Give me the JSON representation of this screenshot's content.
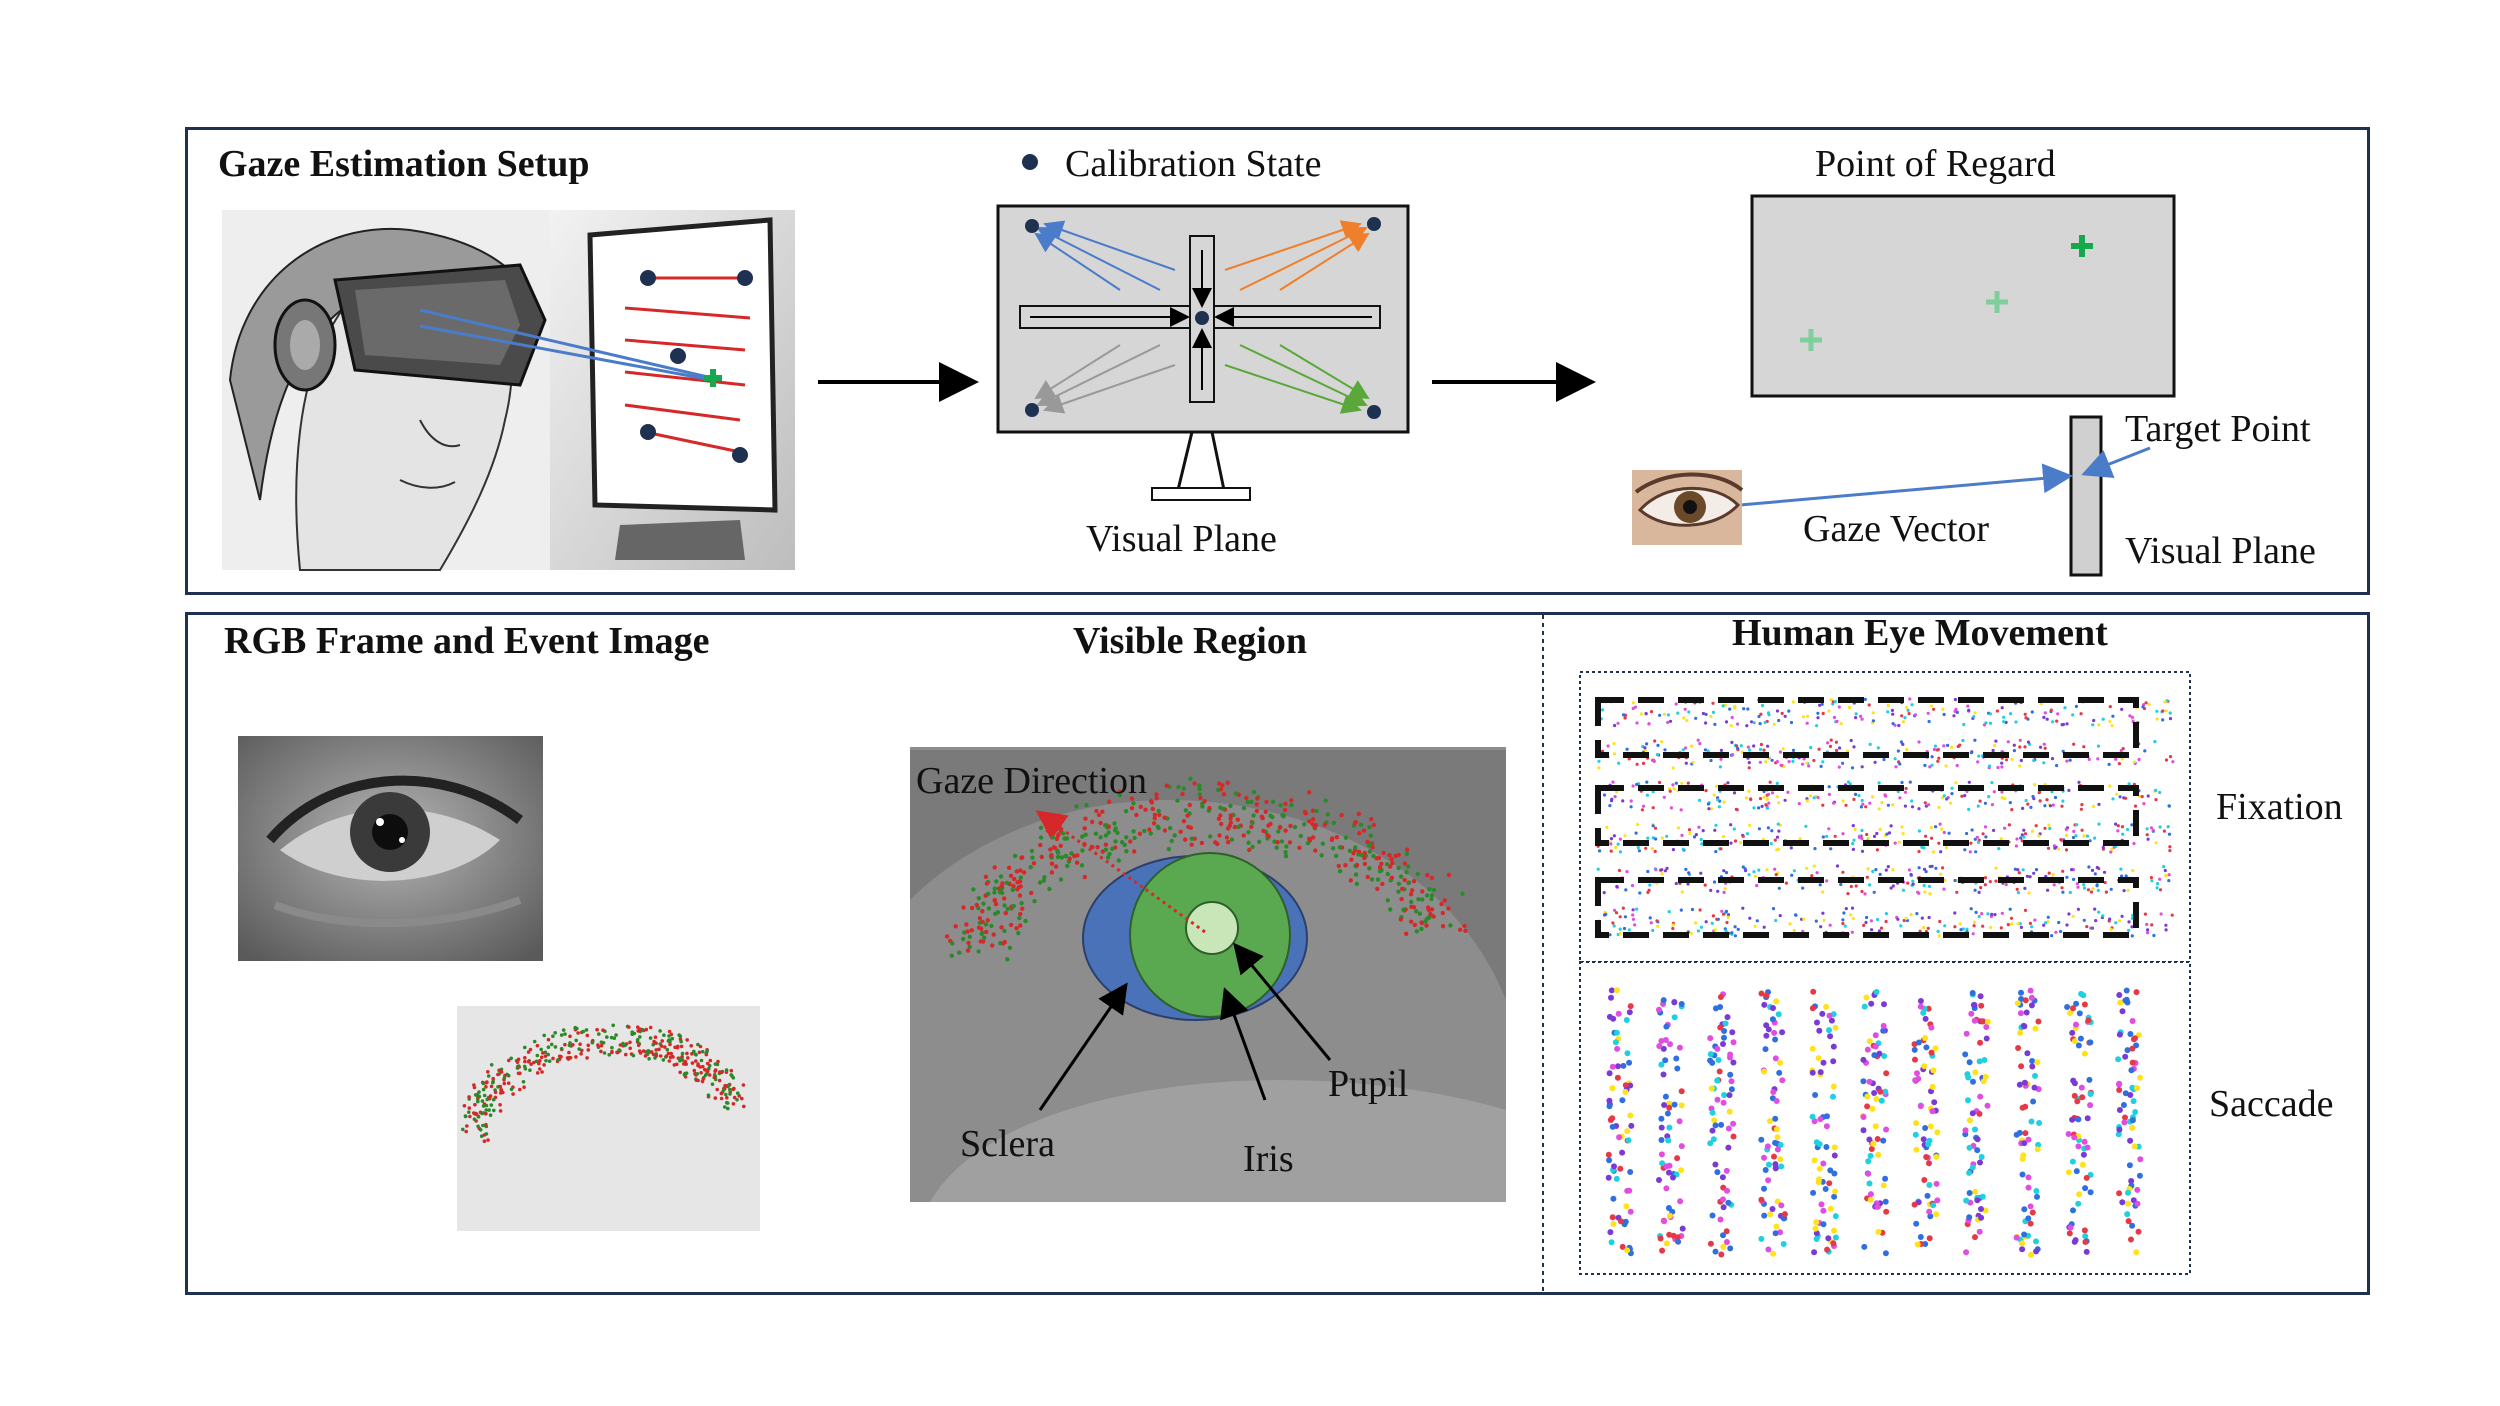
{
  "top_panel": {
    "setup_title": "Gaze Estimation Setup",
    "calibration_legend": "Calibration State",
    "visual_plane_caption": "Visual Plane",
    "point_of_regard_title": "Point of Regard",
    "target_point_label": "Target Point",
    "gaze_vector_label": "Gaze Vector",
    "visual_plane_side_label": "Visual Plane"
  },
  "bottom_panel": {
    "rgb_event_title": "RGB Frame and Event Image",
    "visible_region_title": "Visible Region",
    "gaze_direction_label": "Gaze Direction",
    "sclera_label": "Sclera",
    "iris_label": "Iris",
    "pupil_label": "Pupil",
    "eye_movement_title": "Human Eye Movement",
    "fixation_label": "Fixation",
    "saccade_label": "Saccade"
  },
  "colors": {
    "panel_border": "#1f3151",
    "calibration_dot": "#1f3151",
    "target_cross": "#17a84d",
    "sclera_fill": "#4a72b8",
    "iris_fill": "#5aa84f",
    "pupil_fill": "#c8e6b8",
    "event_positive": "#d62828",
    "event_negative": "#2a8a2a"
  }
}
